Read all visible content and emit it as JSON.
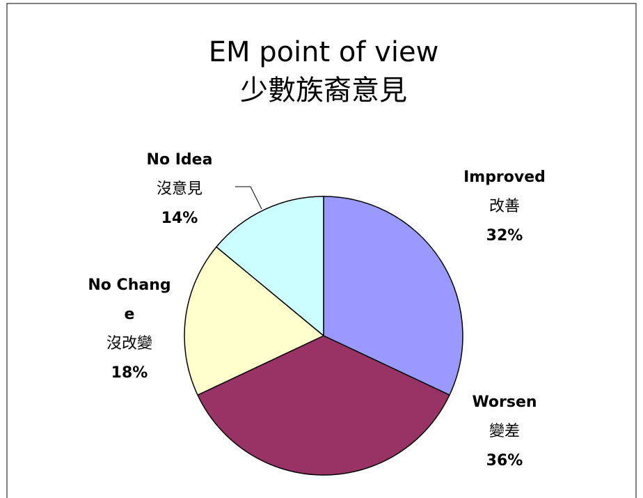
{
  "chart_data": {
    "type": "pie",
    "title": "EM point of view",
    "subtitle": "少數族裔意見",
    "categories": [
      "Improved",
      "Worsen",
      "No Change",
      "No Idea"
    ],
    "categories_zh": [
      "改善",
      "變差",
      "沒改變",
      "沒意見"
    ],
    "values": [
      32,
      36,
      18,
      14
    ],
    "value_labels": [
      "32%",
      "36%",
      "18%",
      "14%"
    ],
    "colors": [
      "#9999ff",
      "#993366",
      "#ffffcc",
      "#ccffff"
    ]
  }
}
